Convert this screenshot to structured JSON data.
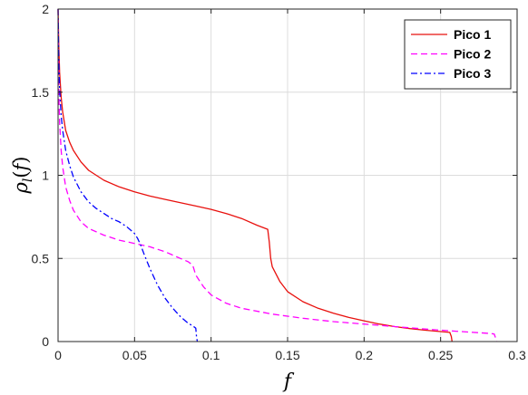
{
  "chart_data": {
    "type": "line",
    "title": "",
    "xlabel": "f",
    "ylabel": "ρ_l(f)",
    "xlim": [
      0,
      0.3
    ],
    "ylim": [
      0,
      2
    ],
    "x_ticks": [
      0,
      0.05,
      0.1,
      0.15,
      0.2,
      0.25,
      0.3
    ],
    "x_tick_labels": [
      "0",
      "0.05",
      "0.1",
      "0.15",
      "0.2",
      "0.25",
      "0.3"
    ],
    "y_ticks": [
      0,
      0.5,
      1,
      1.5,
      2
    ],
    "y_tick_labels": [
      "0",
      "0.5",
      "1",
      "1.5",
      "2"
    ],
    "grid": true,
    "legend_position": "top-right",
    "series": [
      {
        "name": "Pico 1",
        "color": "#e8100d",
        "dash": "solid",
        "x": [
          0,
          0.0005,
          0.001,
          0.002,
          0.003,
          0.005,
          0.0075,
          0.01,
          0.015,
          0.02,
          0.03,
          0.04,
          0.05,
          0.06,
          0.07,
          0.08,
          0.09,
          0.1,
          0.11,
          0.12,
          0.13,
          0.137,
          0.138,
          0.139,
          0.14,
          0.145,
          0.15,
          0.16,
          0.17,
          0.18,
          0.19,
          0.2,
          0.21,
          0.22,
          0.23,
          0.24,
          0.25,
          0.256,
          0.257,
          0.2575
        ],
        "y": [
          2.0,
          1.78,
          1.62,
          1.47,
          1.38,
          1.27,
          1.2,
          1.15,
          1.08,
          1.03,
          0.97,
          0.93,
          0.9,
          0.875,
          0.855,
          0.835,
          0.815,
          0.795,
          0.77,
          0.74,
          0.7,
          0.675,
          0.6,
          0.5,
          0.45,
          0.36,
          0.3,
          0.24,
          0.2,
          0.17,
          0.145,
          0.125,
          0.105,
          0.09,
          0.078,
          0.068,
          0.06,
          0.055,
          0.03,
          0.0
        ]
      },
      {
        "name": "Pico 2",
        "color": "#ff00ff",
        "dash": "dashed",
        "x": [
          0,
          0.0005,
          0.001,
          0.002,
          0.003,
          0.005,
          0.0075,
          0.01,
          0.015,
          0.02,
          0.025,
          0.03,
          0.04,
          0.05,
          0.06,
          0.07,
          0.08,
          0.085,
          0.088,
          0.09,
          0.095,
          0.1,
          0.11,
          0.12,
          0.14,
          0.16,
          0.18,
          0.2,
          0.22,
          0.24,
          0.26,
          0.28,
          0.285,
          0.286,
          0.2865
        ],
        "y": [
          2.0,
          1.5,
          1.32,
          1.15,
          1.05,
          0.93,
          0.85,
          0.79,
          0.72,
          0.68,
          0.66,
          0.64,
          0.61,
          0.59,
          0.57,
          0.54,
          0.5,
          0.48,
          0.46,
          0.4,
          0.33,
          0.28,
          0.23,
          0.2,
          0.165,
          0.14,
          0.12,
          0.105,
          0.09,
          0.075,
          0.062,
          0.05,
          0.046,
          0.02,
          0.0
        ]
      },
      {
        "name": "Pico 3",
        "color": "#0000ff",
        "dash": "dashdot",
        "x": [
          0,
          0.0005,
          0.001,
          0.002,
          0.003,
          0.005,
          0.0075,
          0.01,
          0.015,
          0.02,
          0.025,
          0.03,
          0.035,
          0.04,
          0.045,
          0.05,
          0.052,
          0.054,
          0.056,
          0.06,
          0.065,
          0.07,
          0.075,
          0.08,
          0.085,
          0.088,
          0.09,
          0.0905,
          0.091
        ],
        "y": [
          2.0,
          1.68,
          1.52,
          1.36,
          1.27,
          1.15,
          1.06,
          0.99,
          0.9,
          0.84,
          0.8,
          0.77,
          0.74,
          0.72,
          0.69,
          0.65,
          0.62,
          0.58,
          0.53,
          0.44,
          0.34,
          0.26,
          0.2,
          0.15,
          0.11,
          0.095,
          0.08,
          0.03,
          0.0
        ]
      }
    ]
  }
}
